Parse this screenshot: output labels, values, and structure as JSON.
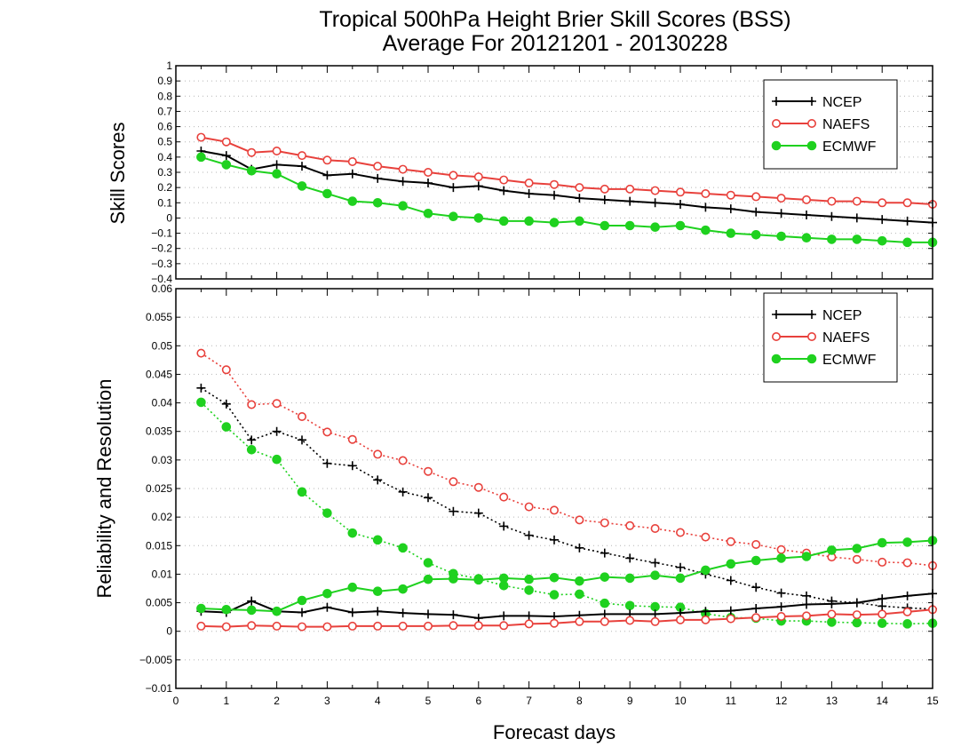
{
  "figure": {
    "title_line1": "Tropical 500hPa Height Brier Skill Scores (BSS)",
    "title_line2": "Average For 20121201 - 20130228",
    "xlabel": "Forecast days"
  },
  "colors": {
    "NCEP": "#000000",
    "NAEFS": "#e8413c",
    "ECMWF": "#1fd11f"
  },
  "chart_data": [
    {
      "type": "line",
      "ylabel": "Skill Scores",
      "xlim": [
        0,
        15
      ],
      "ylim": [
        -0.4,
        1
      ],
      "x_ticks": [
        0,
        1,
        2,
        3,
        4,
        5,
        6,
        7,
        8,
        9,
        10,
        11,
        12,
        13,
        14,
        15
      ],
      "y_ticks": [
        "−0.4",
        "−0.3",
        "−0.2",
        "−0.1",
        "0",
        "0.1",
        "0.2",
        "0.3",
        "0.4",
        "0.5",
        "0.6",
        "0.7",
        "0.8",
        "0.9",
        "1"
      ],
      "y_tick_values": [
        -0.4,
        -0.3,
        -0.2,
        -0.1,
        0,
        0.1,
        0.2,
        0.3,
        0.4,
        0.5,
        0.6,
        0.7,
        0.8,
        0.9,
        1
      ],
      "grid": true,
      "legend": "top-right",
      "x": [
        0.5,
        1,
        1.5,
        2,
        2.5,
        3,
        3.5,
        4,
        4.5,
        5,
        5.5,
        6,
        6.5,
        7,
        7.5,
        8,
        8.5,
        9,
        9.5,
        10,
        10.5,
        11,
        11.5,
        12,
        12.5,
        13,
        13.5,
        14,
        14.5,
        15
      ],
      "series": [
        {
          "name": "NCEP",
          "marker": "plus",
          "line": "solid",
          "values": [
            0.44,
            0.41,
            0.32,
            0.35,
            0.34,
            0.28,
            0.29,
            0.26,
            0.24,
            0.23,
            0.2,
            0.21,
            0.18,
            0.16,
            0.15,
            0.13,
            0.12,
            0.11,
            0.1,
            0.09,
            0.07,
            0.06,
            0.04,
            0.03,
            0.02,
            0.01,
            0.0,
            -0.01,
            -0.02,
            -0.03
          ]
        },
        {
          "name": "NAEFS",
          "marker": "open-circle",
          "line": "solid",
          "values": [
            0.53,
            0.5,
            0.43,
            0.44,
            0.41,
            0.38,
            0.37,
            0.34,
            0.32,
            0.3,
            0.28,
            0.27,
            0.25,
            0.23,
            0.22,
            0.2,
            0.19,
            0.19,
            0.18,
            0.17,
            0.16,
            0.15,
            0.14,
            0.13,
            0.12,
            0.11,
            0.11,
            0.1,
            0.1,
            0.09
          ]
        },
        {
          "name": "ECMWF",
          "marker": "filled-circle",
          "line": "solid",
          "values": [
            0.4,
            0.35,
            0.31,
            0.29,
            0.21,
            0.16,
            0.11,
            0.1,
            0.08,
            0.03,
            0.01,
            0.0,
            -0.02,
            -0.02,
            -0.03,
            -0.02,
            -0.05,
            -0.05,
            -0.06,
            -0.05,
            -0.08,
            -0.1,
            -0.11,
            -0.12,
            -0.13,
            -0.14,
            -0.14,
            -0.15,
            -0.16,
            -0.16
          ]
        }
      ]
    },
    {
      "type": "line",
      "ylabel": "Reliability and Resolution",
      "xlim": [
        0,
        15
      ],
      "ylim": [
        -0.01,
        0.06
      ],
      "x_ticks": [
        0,
        1,
        2,
        3,
        4,
        5,
        6,
        7,
        8,
        9,
        10,
        11,
        12,
        13,
        14,
        15
      ],
      "y_ticks": [
        "−0.01",
        "−0.005",
        "0",
        "0.005",
        "0.01",
        "0.015",
        "0.02",
        "0.025",
        "0.03",
        "0.035",
        "0.04",
        "0.045",
        "0.05",
        "0.055",
        "0.06"
      ],
      "y_tick_values": [
        -0.01,
        -0.005,
        0,
        0.005,
        0.01,
        0.015,
        0.02,
        0.025,
        0.03,
        0.035,
        0.04,
        0.045,
        0.05,
        0.055,
        0.06
      ],
      "grid": true,
      "legend": "top-right",
      "x": [
        0.5,
        1,
        1.5,
        2,
        2.5,
        3,
        3.5,
        4,
        4.5,
        5,
        5.5,
        6,
        6.5,
        7,
        7.5,
        8,
        8.5,
        9,
        9.5,
        10,
        10.5,
        11,
        11.5,
        12,
        12.5,
        13,
        13.5,
        14,
        14.5,
        15
      ],
      "series": [
        {
          "name": "NCEP",
          "marker": "plus",
          "line": "dotted",
          "values": [
            0.0426,
            0.0398,
            0.0335,
            0.035,
            0.0335,
            0.0294,
            0.029,
            0.0265,
            0.0244,
            0.0234,
            0.021,
            0.0207,
            0.0184,
            0.0168,
            0.016,
            0.0146,
            0.0137,
            0.0128,
            0.012,
            0.0112,
            0.01,
            0.0089,
            0.0077,
            0.0067,
            0.0062,
            0.0053,
            0.005,
            0.0044,
            0.0041,
            0.0039
          ]
        },
        {
          "name": "NAEFS",
          "marker": "open-circle",
          "line": "dotted",
          "values": [
            0.0487,
            0.0458,
            0.0397,
            0.0399,
            0.0376,
            0.0349,
            0.0336,
            0.031,
            0.0299,
            0.028,
            0.0262,
            0.0252,
            0.0235,
            0.0218,
            0.0212,
            0.0195,
            0.019,
            0.0185,
            0.018,
            0.0173,
            0.0165,
            0.0157,
            0.0152,
            0.0143,
            0.0137,
            0.013,
            0.0126,
            0.0121,
            0.012,
            0.0115
          ]
        },
        {
          "name": "ECMWF",
          "marker": "filled-circle",
          "line": "dotted",
          "values": [
            0.0401,
            0.0358,
            0.0318,
            0.0301,
            0.0244,
            0.0207,
            0.0172,
            0.016,
            0.0146,
            0.012,
            0.0101,
            0.0092,
            0.008,
            0.0072,
            0.0064,
            0.0065,
            0.0049,
            0.0045,
            0.0043,
            0.0042,
            0.0031,
            0.0024,
            0.0023,
            0.0018,
            0.0018,
            0.0016,
            0.0015,
            0.0014,
            0.0013,
            0.0014
          ]
        },
        {
          "name": "NCEP",
          "marker": "plus",
          "line": "solid",
          "values": [
            0.0035,
            0.0033,
            0.0053,
            0.0035,
            0.0033,
            0.0042,
            0.0033,
            0.0035,
            0.0032,
            0.003,
            0.0029,
            0.0023,
            0.0027,
            0.0027,
            0.0026,
            0.0028,
            0.003,
            0.003,
            0.003,
            0.0032,
            0.0035,
            0.0036,
            0.004,
            0.0043,
            0.0047,
            0.0048,
            0.005,
            0.0057,
            0.0062,
            0.0066
          ]
        },
        {
          "name": "NAEFS",
          "marker": "open-circle",
          "line": "solid",
          "values": [
            0.0009,
            0.0008,
            0.001,
            0.0009,
            0.0008,
            0.0008,
            0.0009,
            0.0009,
            0.0009,
            0.0009,
            0.001,
            0.001,
            0.001,
            0.0013,
            0.0014,
            0.0017,
            0.0017,
            0.0019,
            0.0017,
            0.002,
            0.002,
            0.0022,
            0.0024,
            0.0026,
            0.0027,
            0.003,
            0.0029,
            0.003,
            0.0034,
            0.0038
          ]
        },
        {
          "name": "ECMWF",
          "marker": "filled-circle",
          "line": "solid",
          "values": [
            0.004,
            0.0038,
            0.0037,
            0.0035,
            0.0054,
            0.0066,
            0.0077,
            0.007,
            0.0074,
            0.0091,
            0.0092,
            0.009,
            0.0093,
            0.0091,
            0.0094,
            0.0088,
            0.0095,
            0.0093,
            0.0098,
            0.0093,
            0.0107,
            0.0118,
            0.0124,
            0.0128,
            0.0131,
            0.0142,
            0.0145,
            0.0155,
            0.0156,
            0.0159
          ]
        }
      ]
    }
  ]
}
